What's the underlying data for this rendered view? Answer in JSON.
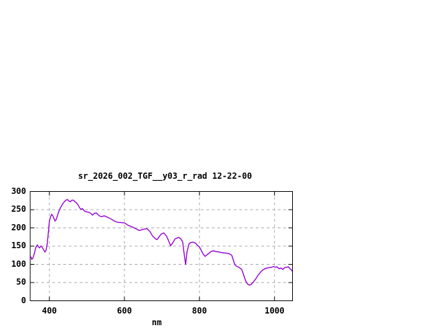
{
  "page": {
    "background_color": "#FFFFFF"
  },
  "chart_data": {
    "type": "line",
    "title": "sr_2026_002_TGF__y03_r_rad 12-22-00",
    "xlabel": "nm",
    "ylabel": "",
    "xlim": [
      349,
      1048
    ],
    "ylim": [
      0,
      300
    ],
    "xticks": [
      400,
      600,
      800,
      1000
    ],
    "yticks": [
      0,
      50,
      100,
      150,
      200,
      250,
      300
    ],
    "grid": true,
    "legend": false,
    "line_color": "#9400D3",
    "grid_color": "#A9A9A9",
    "frame_color": "#000000",
    "series": [
      {
        "name": "sr_2026_002_TGF__y03_r_rad",
        "x": [
          350,
          353,
          356,
          360,
          364,
          368,
          371,
          374,
          377,
          380,
          384,
          388,
          391,
          394,
          397,
          400,
          403,
          406,
          409,
          412,
          415,
          418,
          421,
          424,
          428,
          432,
          436,
          440,
          444,
          448,
          452,
          456,
          460,
          464,
          468,
          472,
          476,
          480,
          484,
          488,
          492,
          496,
          500,
          505,
          510,
          515,
          520,
          525,
          530,
          535,
          540,
          545,
          550,
          555,
          560,
          565,
          570,
          575,
          580,
          585,
          590,
          595,
          600,
          610,
          620,
          630,
          640,
          650,
          660,
          668,
          675,
          683,
          687,
          692,
          698,
          705,
          712,
          718,
          723,
          728,
          735,
          740,
          745,
          750,
          755,
          759,
          763,
          767,
          772,
          777,
          783,
          790,
          795,
          800,
          804,
          810,
          815,
          820,
          826,
          832,
          838,
          845,
          852,
          860,
          868,
          876,
          882,
          886,
          890,
          894,
          898,
          903,
          908,
          913,
          918,
          923,
          928,
          933,
          938,
          944,
          950,
          956,
          962,
          968,
          974,
          980,
          986,
          992,
          997,
          1002,
          1007,
          1012,
          1017,
          1022,
          1027,
          1032,
          1037,
          1041,
          1044,
          1047
        ],
        "y": [
          122,
          114,
          117,
          130,
          147,
          153,
          148,
          145,
          150,
          148,
          141,
          134,
          138,
          155,
          185,
          218,
          230,
          237,
          234,
          226,
          219,
          223,
          232,
          242,
          252,
          260,
          267,
          272,
          276,
          278,
          274,
          272,
          276,
          276,
          272,
          269,
          264,
          256,
          251,
          253,
          248,
          245,
          244,
          243,
          240,
          235,
          240,
          241,
          236,
          232,
          231,
          233,
          232,
          229,
          227,
          224,
          221,
          218,
          216,
          215,
          215,
          214,
          214,
          207,
          203,
          198,
          193,
          196,
          198,
          190,
          178,
          170,
          168,
          175,
          183,
          186,
          178,
          164,
          151,
          158,
          170,
          172,
          174,
          170,
          162,
          130,
          99,
          135,
          156,
          160,
          161,
          158,
          152,
          148,
          140,
          128,
          122,
          126,
          131,
          136,
          137,
          135,
          134,
          132,
          131,
          130,
          128,
          125,
          112,
          100,
          95,
          93,
          90,
          85,
          70,
          55,
          46,
          43,
          45,
          52,
          60,
          70,
          78,
          84,
          88,
          90,
          91,
          92,
          94,
          92,
          93,
          88,
          90,
          86,
          91,
          92,
          93,
          88,
          86,
          81
        ]
      }
    ]
  }
}
